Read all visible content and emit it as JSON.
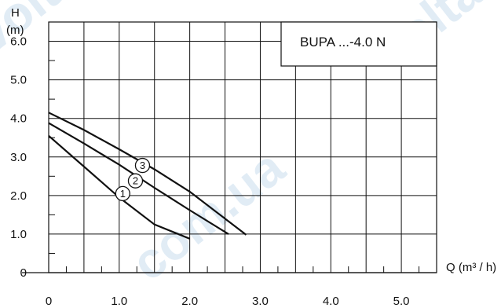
{
  "chart_data": {
    "type": "line",
    "title": "BUPA ...-4.0 N",
    "y_axis_top_label": "H",
    "ylabel": "(m)",
    "xlabel": "Q (m³ / h)",
    "xlim": [
      0,
      5.5
    ],
    "ylim": [
      0,
      6.5
    ],
    "x_tick_labels": [
      "0",
      "1.0",
      "2.0",
      "3.0",
      "4.0",
      "5.0"
    ],
    "x_ticks": [
      0,
      1,
      2,
      3,
      4,
      5
    ],
    "y_tick_labels": [
      "0",
      "1.0",
      "2.0",
      "3.0",
      "4.0",
      "5.0",
      "6.0"
    ],
    "y_ticks": [
      0,
      1,
      2,
      3,
      4,
      5,
      6
    ],
    "grid": true,
    "series": [
      {
        "name": "1",
        "x": [
          0,
          0.5,
          1.0,
          1.5,
          2.0
        ],
        "y": [
          3.55,
          2.75,
          1.95,
          1.25,
          0.88
        ]
      },
      {
        "name": "2",
        "x": [
          0,
          0.5,
          1.0,
          1.5,
          2.0,
          2.55
        ],
        "y": [
          3.88,
          3.35,
          2.8,
          2.2,
          1.62,
          1.0
        ]
      },
      {
        "name": "3",
        "x": [
          0,
          0.5,
          1.0,
          1.5,
          2.0,
          2.8
        ],
        "y": [
          4.15,
          3.7,
          3.2,
          2.68,
          2.1,
          0.98
        ]
      }
    ],
    "series_markers": [
      {
        "label": "1",
        "x": 1.05,
        "y": 2.05
      },
      {
        "label": "2",
        "x": 1.23,
        "y": 2.38
      },
      {
        "label": "3",
        "x": 1.33,
        "y": 2.78
      }
    ]
  },
  "watermark": "volta.com.ua"
}
